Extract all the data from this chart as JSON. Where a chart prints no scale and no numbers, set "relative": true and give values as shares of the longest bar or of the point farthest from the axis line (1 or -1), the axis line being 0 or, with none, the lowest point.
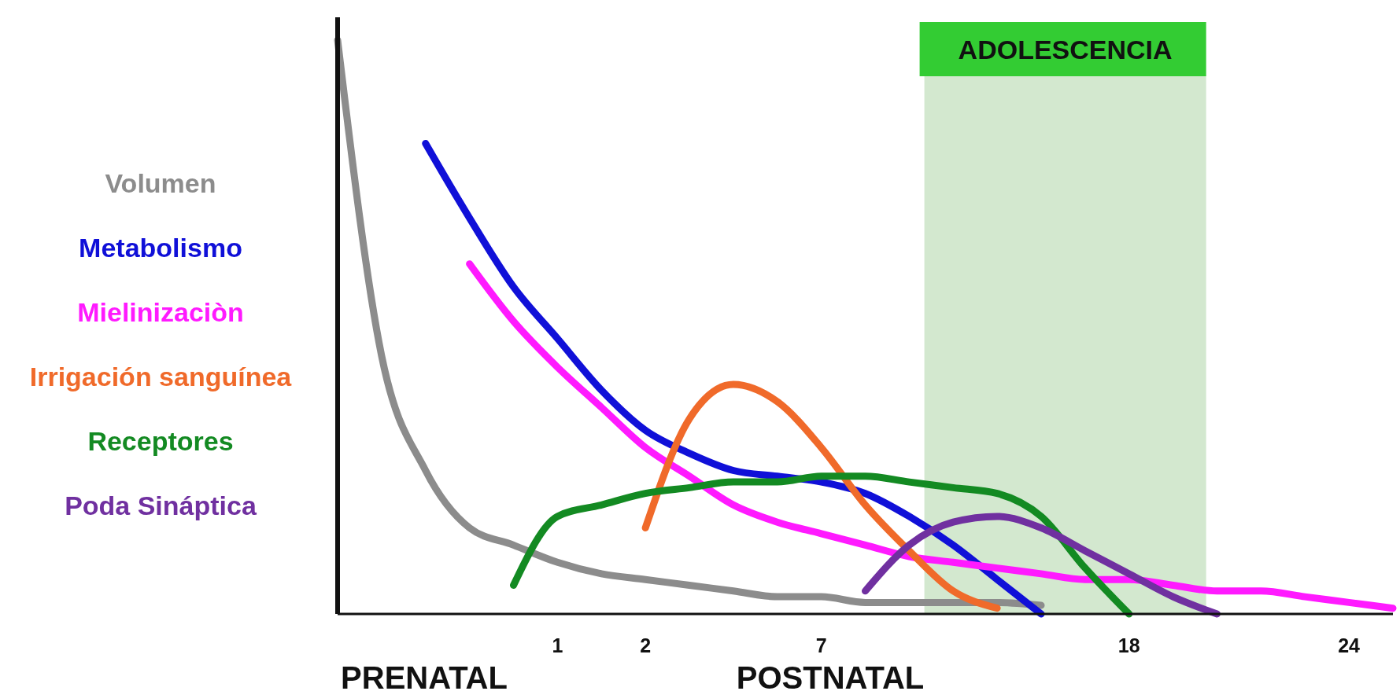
{
  "chart_data": {
    "type": "line",
    "relative": true,
    "xlabel": "POSTNATAL",
    "annotations": [
      "PRENATAL",
      "ADOLESCENCIA"
    ],
    "legend": "left",
    "line_style": "solid",
    "marker": "none",
    "categories": [
      null,
      null,
      null,
      null,
      null,
      "1",
      null,
      "2",
      null,
      null,
      null,
      "7",
      null,
      null,
      null,
      null,
      null,
      null,
      "18",
      null,
      null,
      null,
      null,
      "24",
      null
    ],
    "series": [
      {
        "name": "Volumen",
        "color": "#8c8c8c",
        "values": [
          1.0,
          0.45,
          0.25,
          0.15,
          0.12,
          0.09,
          0.07,
          0.06,
          0.05,
          0.04,
          0.03,
          0.03,
          0.02,
          0.02,
          0.02,
          0.02,
          0.015,
          null,
          null,
          null,
          null,
          null,
          null,
          null,
          null
        ]
      },
      {
        "name": "Metabolismo",
        "color": "#1010d8",
        "values": [
          null,
          null,
          0.82,
          0.69,
          0.57,
          0.48,
          0.39,
          0.32,
          0.28,
          0.25,
          0.24,
          0.23,
          0.21,
          0.17,
          0.12,
          0.06,
          0.0,
          null,
          null,
          null,
          null,
          null,
          null,
          null,
          null
        ]
      },
      {
        "name": "Mielinizaciòn",
        "color": "#ff1aff",
        "values": [
          null,
          null,
          null,
          0.61,
          0.51,
          0.43,
          0.36,
          0.29,
          0.24,
          0.19,
          0.16,
          0.14,
          0.12,
          0.1,
          0.09,
          0.08,
          0.07,
          0.06,
          0.06,
          0.05,
          0.04,
          0.04,
          0.03,
          0.02,
          0.01
        ]
      },
      {
        "name": "Irrigación sanguínea",
        "color": "#f06a2a",
        "values": [
          null,
          null,
          null,
          null,
          null,
          null,
          null,
          0.15,
          0.34,
          0.4,
          0.37,
          0.29,
          0.19,
          0.11,
          0.04,
          0.01,
          null,
          null,
          null,
          null,
          null,
          null,
          null,
          null,
          null
        ]
      },
      {
        "name": "Receptores",
        "color": "#138a22",
        "values": [
          null,
          null,
          null,
          null,
          0.05,
          0.17,
          0.19,
          0.21,
          0.22,
          0.23,
          0.23,
          0.24,
          0.24,
          0.23,
          0.22,
          0.21,
          0.17,
          0.08,
          0.0,
          null,
          null,
          null,
          null,
          null,
          null
        ]
      },
      {
        "name": "Poda Sináptica",
        "color": "#7030a0",
        "values": [
          null,
          null,
          null,
          null,
          null,
          null,
          null,
          null,
          null,
          null,
          null,
          null,
          0.04,
          0.12,
          0.16,
          0.17,
          0.15,
          0.11,
          0.07,
          0.03,
          0.0,
          null,
          null,
          null,
          null
        ]
      }
    ]
  }
}
